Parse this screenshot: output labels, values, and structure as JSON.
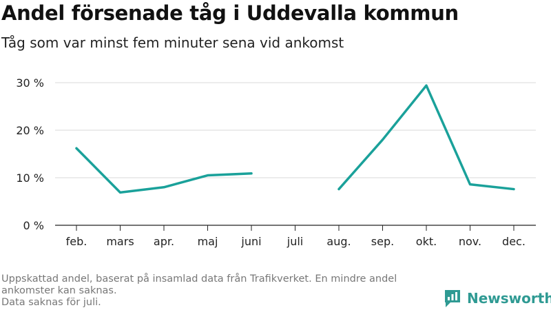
{
  "header": {
    "title": "Andel försenade tåg i Uddevalla kommun",
    "subtitle": "Tåg som var minst fem minuter sena vid ankomst"
  },
  "chart_data": {
    "type": "line",
    "categories": [
      "feb.",
      "mars",
      "apr.",
      "maj",
      "juni",
      "juli",
      "aug.",
      "sep.",
      "okt.",
      "nov.",
      "dec."
    ],
    "series": [
      {
        "values": [
          16.2,
          6.9,
          8.0,
          10.5,
          10.9,
          null,
          7.6,
          18.0,
          29.4,
          8.6,
          7.6
        ]
      }
    ],
    "y_ticks": [
      0,
      10,
      20,
      30
    ],
    "y_tick_suffix": " %",
    "ylim": [
      0,
      33
    ],
    "grid": true,
    "line_color": "#1aa19a"
  },
  "footer": {
    "note_line1": "Uppskattad andel, baserat på insamlad data från Trafikverket. En mindre andel ankomster kan saknas.",
    "note_line2": "Data saknas för juli."
  },
  "brand": {
    "name": "Newsworthy",
    "icon": "newsworthy-logo-icon",
    "color": "#2f9a93"
  }
}
